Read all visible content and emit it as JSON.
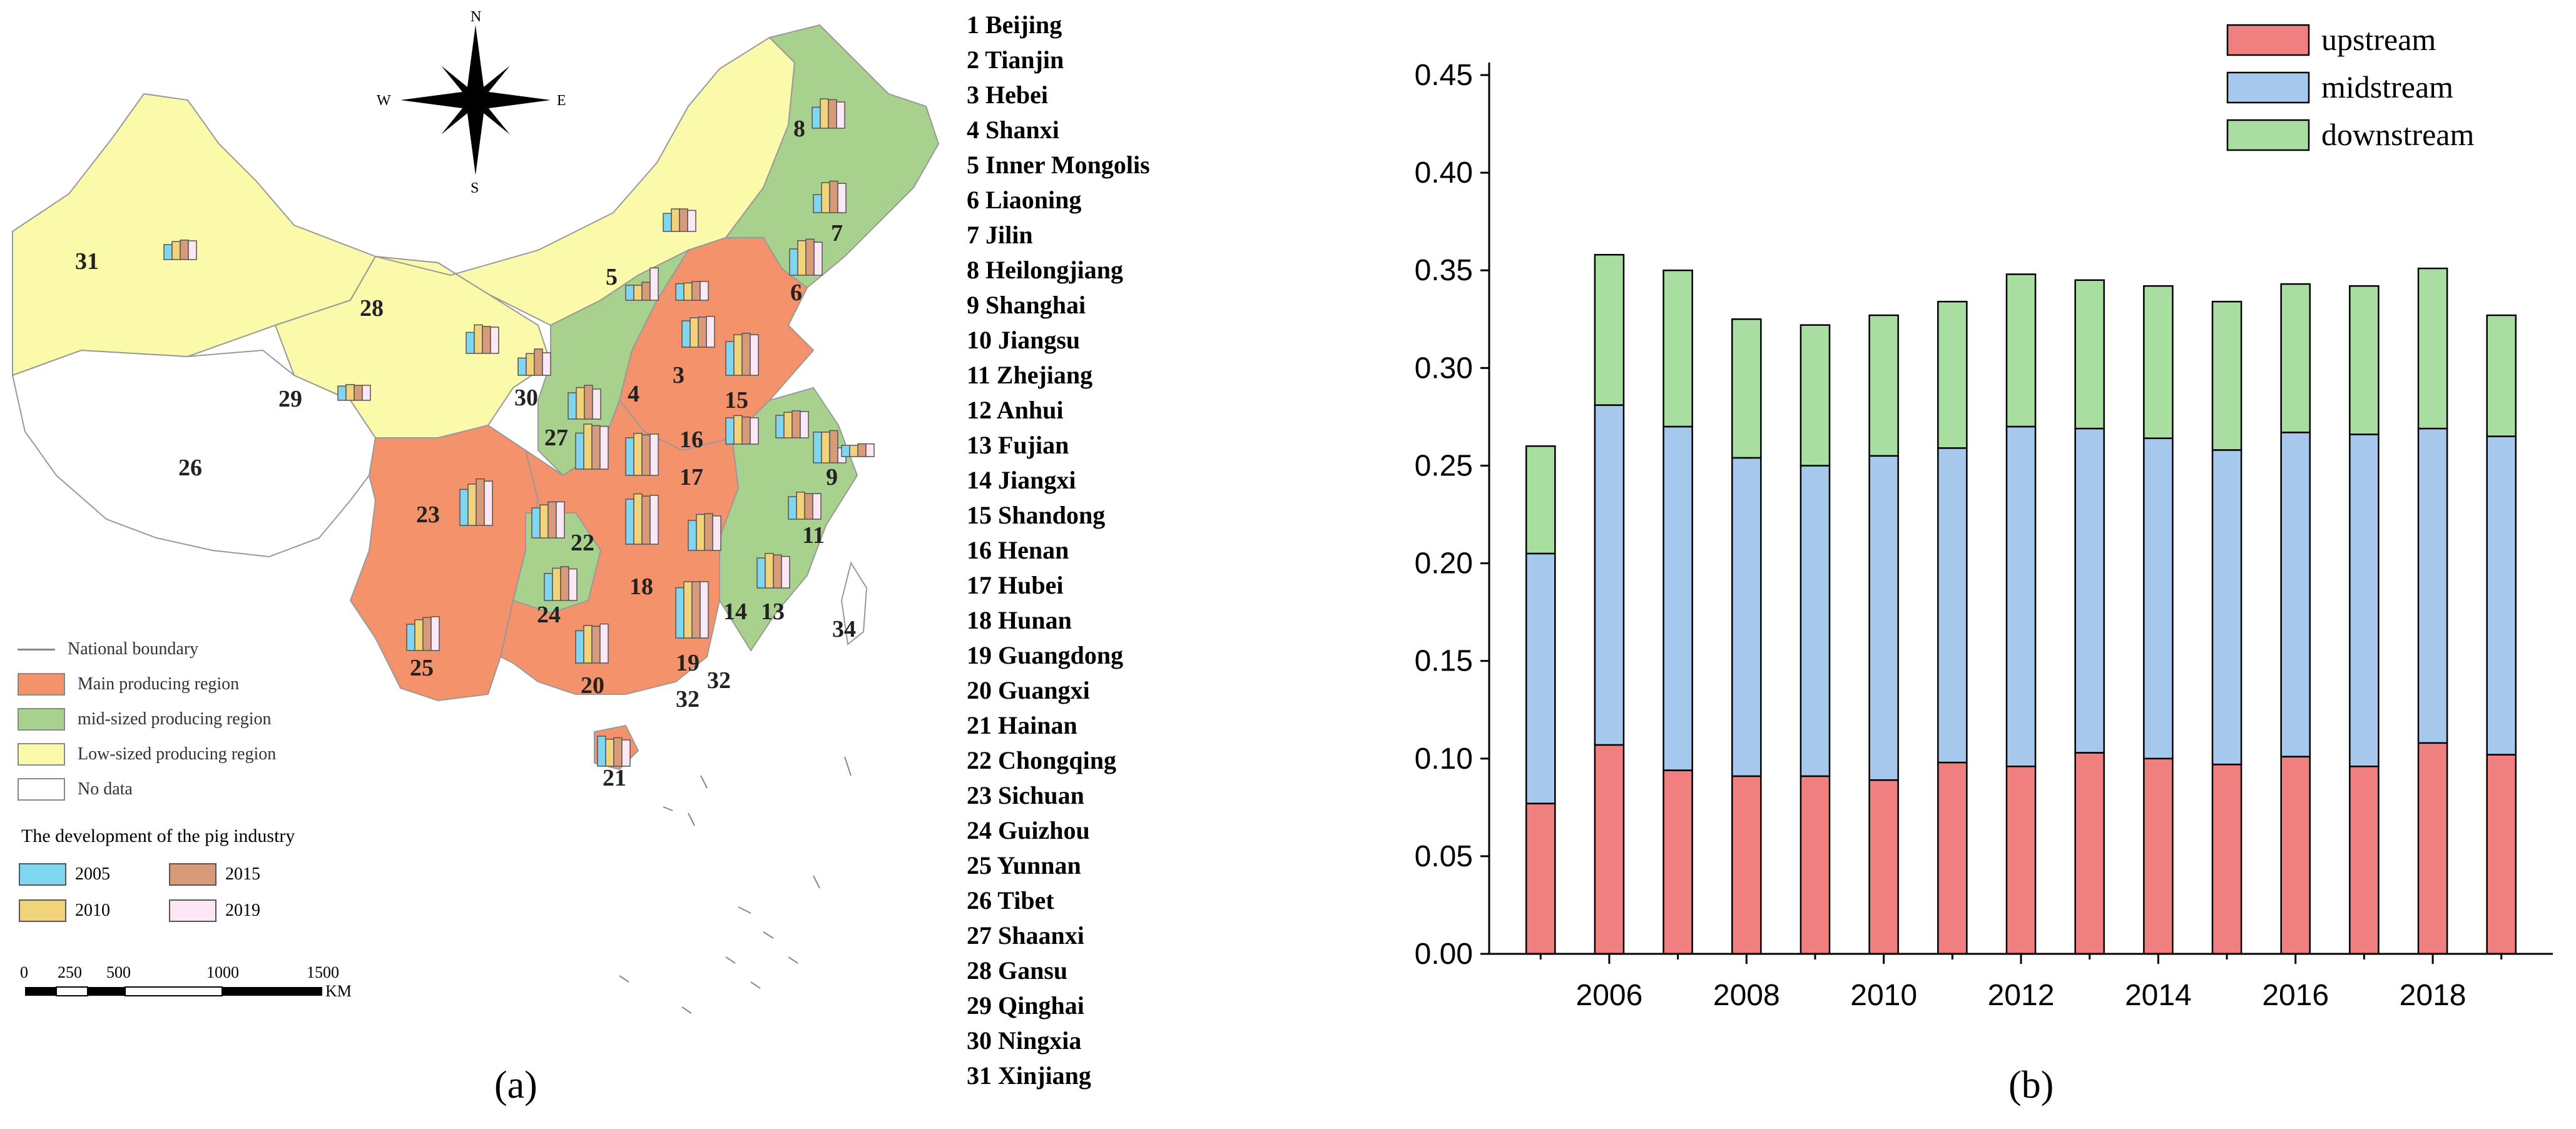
{
  "panel_a": {
    "caption": "(a)",
    "compass": {
      "n": "N",
      "s": "S",
      "e": "E",
      "w": "W"
    },
    "province_list": [
      "1 Beijing",
      "2 Tianjin",
      "3 Hebei",
      "4 Shanxi",
      "5 Inner Mongolis",
      "6 Liaoning",
      "7 Jilin",
      "8 Heilongjiang",
      "9 Shanghai",
      "10 Jiangsu",
      "11 Zhejiang",
      "12 Anhui",
      "13 Fujian",
      "14 Jiangxi",
      "15 Shandong",
      "16 Henan",
      "17 Hubei",
      "18 Hunan",
      "19 Guangdong",
      "20 Guangxi",
      "21 Hainan",
      "22 Chongqing",
      "23 Sichuan",
      "24 Guizhou",
      "25 Yunnan",
      "26 Tibet",
      "27 Shaanxi",
      "28 Gansu",
      "29 Qinghai",
      "30 Ningxia",
      "31 Xinjiang"
    ],
    "map_numbers": [
      "31",
      "28",
      "29",
      "26",
      "5",
      "8",
      "7",
      "6",
      "3",
      "4",
      "15",
      "30",
      "27",
      "16",
      "17",
      "9",
      "23",
      "22",
      "11",
      "18",
      "24",
      "14",
      "13",
      "34",
      "25",
      "20",
      "19",
      "32",
      "32",
      "21"
    ],
    "legend": {
      "boundary": "National boundary",
      "main": "Main producing region",
      "mid": "mid-sized producing region",
      "low": "Low-sized producing region",
      "nodata": "No data"
    },
    "region_colors": {
      "main": "#f4936b",
      "mid": "#a9d18e",
      "low": "#fafaaa",
      "nodata": "#ffffff"
    },
    "development": {
      "title": "The development of the pig industry",
      "y2005": "2005",
      "y2010": "2010",
      "y2015": "2015",
      "y2019": "2019",
      "colors": {
        "y2005": "#7fd6f0",
        "y2010": "#f0d37b",
        "y2015": "#d99a7a",
        "y2019": "#fbe8f4"
      }
    },
    "scale": {
      "t0": "0",
      "t250": "250",
      "t500": "500",
      "t1000": "1000",
      "t1500": "1500",
      "unit": "KM"
    }
  },
  "chart_data": {
    "type": "bar",
    "stacked": true,
    "caption": "(b)",
    "categories": [
      "2005",
      "2006",
      "2007",
      "2008",
      "2009",
      "2010",
      "2011",
      "2012",
      "2013",
      "2014",
      "2015",
      "2016",
      "2017",
      "2018",
      "2019"
    ],
    "x_tick_labels": [
      "2006",
      "2008",
      "2010",
      "2012",
      "2014",
      "2016",
      "2018"
    ],
    "series": [
      {
        "name": "upstream",
        "color": "#f08080",
        "values": [
          0.077,
          0.107,
          0.094,
          0.091,
          0.091,
          0.089,
          0.098,
          0.096,
          0.103,
          0.1,
          0.097,
          0.101,
          0.096,
          0.108,
          0.102
        ]
      },
      {
        "name": "midstream",
        "color": "#a6c8ec",
        "values": [
          0.128,
          0.174,
          0.176,
          0.163,
          0.159,
          0.166,
          0.161,
          0.174,
          0.166,
          0.164,
          0.161,
          0.166,
          0.17,
          0.161,
          0.163
        ]
      },
      {
        "name": "downstream",
        "color": "#a8dfa0",
        "values": [
          0.055,
          0.077,
          0.08,
          0.071,
          0.072,
          0.072,
          0.075,
          0.078,
          0.076,
          0.078,
          0.076,
          0.076,
          0.076,
          0.082,
          0.062
        ]
      }
    ],
    "ylim": [
      0,
      0.45
    ],
    "y_ticks": [
      "0.00",
      "0.05",
      "0.10",
      "0.15",
      "0.20",
      "0.25",
      "0.30",
      "0.35",
      "0.40",
      "0.45"
    ],
    "legend_position": "top-right",
    "title": "",
    "xlabel": "",
    "ylabel": ""
  }
}
